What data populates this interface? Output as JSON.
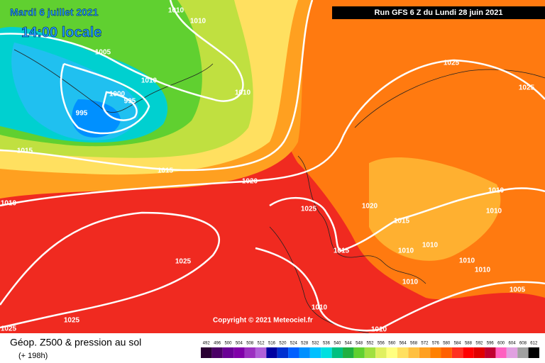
{
  "header": {
    "date": "Mardi 6 juillet 2021",
    "time": "14:00 locale",
    "run": "Run GFS 6 Z du Lundi 28 juin 2021"
  },
  "map": {
    "isobar_labels": [
      "1010",
      "1010",
      "1005",
      "1010",
      "1000",
      "995",
      "995",
      "1010",
      "1015",
      "1015",
      "1020",
      "1025",
      "1025",
      "1010",
      "1025",
      "1020",
      "1015",
      "1010",
      "1010",
      "1015",
      "1010",
      "1010",
      "1010",
      "1010",
      "1025",
      "1010",
      "1005",
      "1010",
      "1025",
      "1025",
      "1010"
    ],
    "copyright": "Copyright © 2021 Meteociel.fr"
  },
  "legend": {
    "title": "Géop. Z500 & pression au sol",
    "lead": "(+ 198h)",
    "scale": [
      {
        "label": "492",
        "color": "#2a0033"
      },
      {
        "label": "496",
        "color": "#4b0066"
      },
      {
        "label": "500",
        "color": "#6a0095"
      },
      {
        "label": "504",
        "color": "#8000a8"
      },
      {
        "label": "508",
        "color": "#9b30c0"
      },
      {
        "label": "512",
        "color": "#b060d8"
      },
      {
        "label": "516",
        "color": "#0000a0"
      },
      {
        "label": "520",
        "color": "#0030d0"
      },
      {
        "label": "524",
        "color": "#0060ff"
      },
      {
        "label": "528",
        "color": "#0090ff"
      },
      {
        "label": "532",
        "color": "#00c0ff"
      },
      {
        "label": "536",
        "color": "#00e0e0"
      },
      {
        "label": "540",
        "color": "#00c080"
      },
      {
        "label": "544",
        "color": "#20b040"
      },
      {
        "label": "548",
        "color": "#60d030"
      },
      {
        "label": "552",
        "color": "#a0e040"
      },
      {
        "label": "556",
        "color": "#e0f060"
      },
      {
        "label": "560",
        "color": "#ffff80"
      },
      {
        "label": "564",
        "color": "#ffe060"
      },
      {
        "label": "568",
        "color": "#ffc040"
      },
      {
        "label": "572",
        "color": "#ffa020"
      },
      {
        "label": "576",
        "color": "#ff8000"
      },
      {
        "label": "580",
        "color": "#ff6000"
      },
      {
        "label": "584",
        "color": "#ff3020"
      },
      {
        "label": "588",
        "color": "#ff0000"
      },
      {
        "label": "592",
        "color": "#e00000"
      },
      {
        "label": "596",
        "color": "#c00030"
      },
      {
        "label": "600",
        "color": "#ff60c0"
      },
      {
        "label": "604",
        "color": "#e0a0e0"
      },
      {
        "label": "608",
        "color": "#a0a0a0"
      },
      {
        "label": "612",
        "color": "#000000"
      }
    ]
  }
}
